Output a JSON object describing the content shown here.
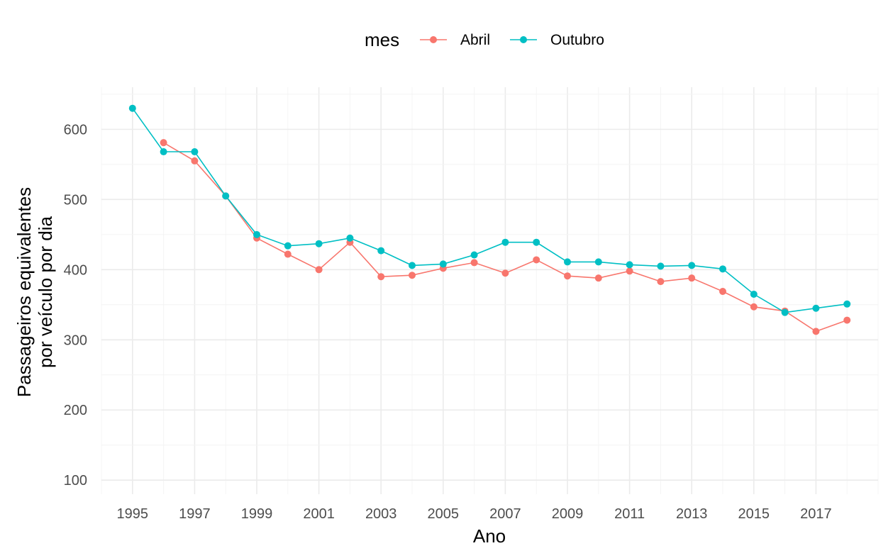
{
  "chart_data": {
    "type": "line",
    "xlabel": "Ano",
    "ylabel_lines": [
      "Passageiros equivalentes",
      "por veículo por dia"
    ],
    "legend_title": "mes",
    "legend_position": "top",
    "grid": true,
    "xlim": [
      1994,
      2019
    ],
    "ylim": [
      80,
      660
    ],
    "x_ticks": [
      1995,
      1997,
      1999,
      2001,
      2003,
      2005,
      2007,
      2009,
      2011,
      2013,
      2015,
      2017
    ],
    "y_ticks": [
      100,
      200,
      300,
      400,
      500,
      600
    ],
    "series": [
      {
        "name": "Abril",
        "color": "#f8766d",
        "points": [
          [
            1996,
            581
          ],
          [
            1997,
            555
          ],
          [
            1998,
            505
          ],
          [
            1999,
            445
          ],
          [
            2000,
            422
          ],
          [
            2001,
            400
          ],
          [
            2002,
            439
          ],
          [
            2003,
            390
          ],
          [
            2004,
            392
          ],
          [
            2005,
            402
          ],
          [
            2006,
            410
          ],
          [
            2007,
            395
          ],
          [
            2008,
            414
          ],
          [
            2009,
            391
          ],
          [
            2010,
            388
          ],
          [
            2011,
            398
          ],
          [
            2012,
            383
          ],
          [
            2013,
            388
          ],
          [
            2014,
            369
          ],
          [
            2015,
            347
          ],
          [
            2016,
            341
          ],
          [
            2017,
            312
          ],
          [
            2018,
            328
          ]
        ]
      },
      {
        "name": "Outubro",
        "color": "#00bfc4",
        "points": [
          [
            1995,
            630
          ],
          [
            1996,
            568
          ],
          [
            1997,
            568
          ],
          [
            1998,
            505
          ],
          [
            1999,
            450
          ],
          [
            2000,
            434
          ],
          [
            2001,
            437
          ],
          [
            2002,
            445
          ],
          [
            2003,
            427
          ],
          [
            2004,
            406
          ],
          [
            2005,
            408
          ],
          [
            2006,
            421
          ],
          [
            2007,
            439
          ],
          [
            2008,
            439
          ],
          [
            2009,
            411
          ],
          [
            2010,
            411
          ],
          [
            2011,
            407
          ],
          [
            2012,
            405
          ],
          [
            2013,
            406
          ],
          [
            2014,
            401
          ],
          [
            2015,
            365
          ],
          [
            2016,
            339
          ],
          [
            2017,
            345
          ],
          [
            2018,
            351
          ]
        ]
      }
    ]
  }
}
